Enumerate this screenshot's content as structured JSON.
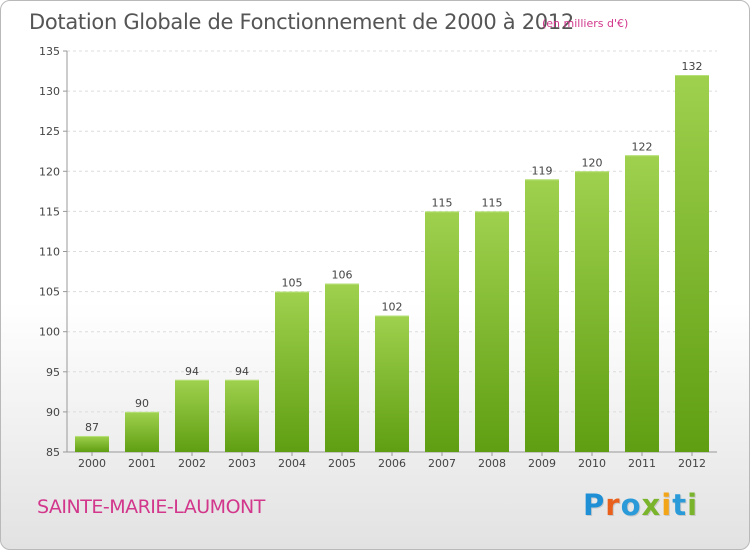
{
  "title": "Dotation Globale de Fonctionnement de 2000 à 2012",
  "subtitle": "(en milliers d'€)",
  "commune": "SAINTE-MARIE-LAUMONT",
  "logo": {
    "text": "Proxiti",
    "letters": [
      {
        "char": "P",
        "color": "#1f8fd6"
      },
      {
        "char": "r",
        "color": "#e8601c"
      },
      {
        "char": "o",
        "color": "#2a9ad9"
      },
      {
        "char": "x",
        "color": "#7ab42c"
      },
      {
        "char": "i",
        "color": "#f2a516"
      },
      {
        "char": "t",
        "color": "#2a9ad9"
      },
      {
        "char": "i",
        "color": "#7ab42c"
      }
    ]
  },
  "chart_data": {
    "type": "bar",
    "categories": [
      "2000",
      "2001",
      "2002",
      "2003",
      "2004",
      "2005",
      "2006",
      "2007",
      "2008",
      "2009",
      "2010",
      "2011",
      "2012"
    ],
    "values": [
      87,
      90,
      94,
      94,
      105,
      106,
      102,
      115,
      115,
      119,
      120,
      122,
      132
    ],
    "ylim": [
      85,
      135
    ],
    "yticks": [
      85,
      90,
      95,
      100,
      105,
      110,
      115,
      120,
      125,
      130,
      135
    ],
    "grid": true,
    "bar_color_top": "#9fd14e",
    "bar_color_bottom": "#5f9e12",
    "legend": "none"
  }
}
